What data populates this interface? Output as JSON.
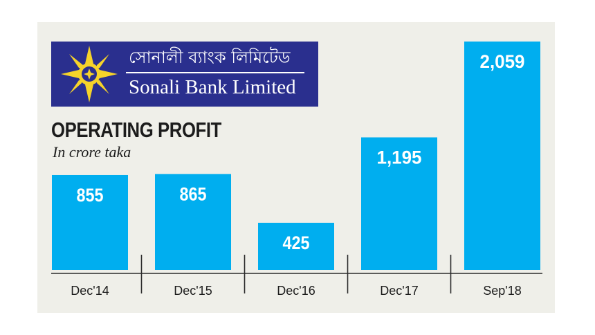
{
  "brand": {
    "name_bengali": "সোনালী ব্যাংক লিমিটেড",
    "name_english": "Sonali Bank Limited",
    "background_color": "#2a2f8e",
    "emblem_color": "#f6d32a"
  },
  "chart_data": {
    "type": "bar",
    "title": "OPERATING PROFIT",
    "subtitle": "In crore taka",
    "categories": [
      "Dec'14",
      "Dec'15",
      "Dec'16",
      "Dec'17",
      "Sep'18"
    ],
    "values": [
      855,
      865,
      425,
      1195,
      2059
    ],
    "value_labels": [
      "855",
      "865",
      "425",
      "1,195",
      "2,059"
    ],
    "bar_color": "#00aeef",
    "background_color": "#efefe9",
    "xlabel": "",
    "ylabel": "",
    "grid": false,
    "legend": "none"
  }
}
